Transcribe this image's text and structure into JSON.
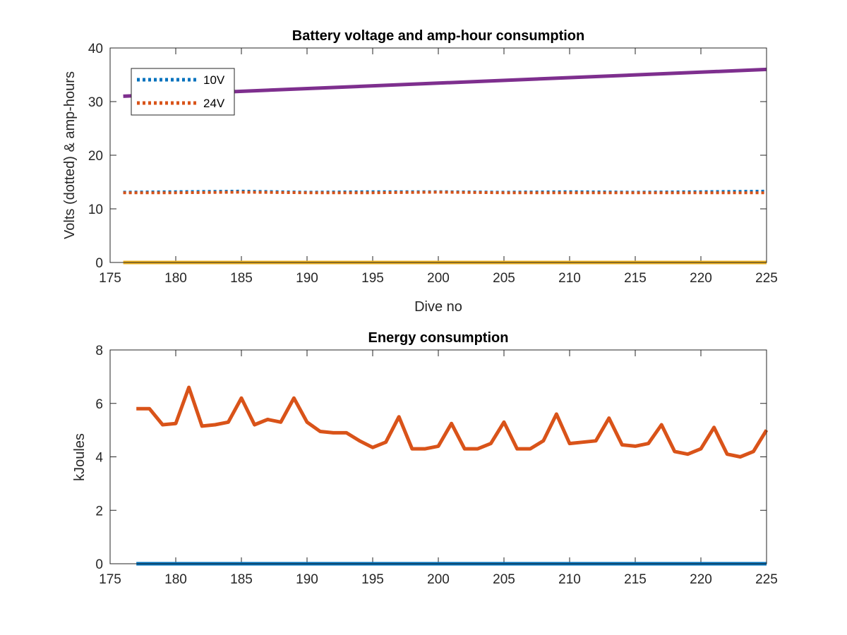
{
  "chart_data": [
    {
      "type": "line",
      "title": "Battery voltage and amp-hour consumption",
      "xlabel": "Dive no",
      "ylabel": "Volts (dotted) & amp-hours",
      "xlim": [
        175,
        225
      ],
      "ylim": [
        0,
        40
      ],
      "xticks": [
        175,
        180,
        185,
        190,
        195,
        200,
        205,
        210,
        215,
        220,
        225
      ],
      "yticks": [
        0,
        10,
        20,
        30,
        40
      ],
      "grid": false,
      "legend_position": "top-left",
      "series": [
        {
          "name": "10V",
          "style": "dotted",
          "color": "#0072BD",
          "x": [
            176,
            180,
            185,
            190,
            195,
            200,
            205,
            210,
            215,
            220,
            225
          ],
          "y": [
            13.1,
            13.2,
            13.3,
            13.1,
            13.2,
            13.2,
            13.1,
            13.2,
            13.1,
            13.2,
            13.3
          ]
        },
        {
          "name": "24V",
          "style": "dotted",
          "color": "#D95319",
          "x": [
            176,
            180,
            185,
            190,
            195,
            200,
            205,
            210,
            215,
            220,
            225
          ],
          "y": [
            13.0,
            13.0,
            13.1,
            13.0,
            13.0,
            13.1,
            13.0,
            13.0,
            13.0,
            13.0,
            13.0
          ]
        },
        {
          "style": "solid",
          "color": "#EDB120",
          "x": [
            176,
            225
          ],
          "y": [
            0,
            0
          ]
        },
        {
          "style": "solid",
          "color": "#7E2F8E",
          "x": [
            176,
            225
          ],
          "y": [
            31,
            36
          ]
        }
      ],
      "legend": [
        "10V",
        "24V"
      ]
    },
    {
      "type": "line",
      "title": "Energy consumption",
      "xlabel": "",
      "ylabel": "kJoules",
      "xlim": [
        175,
        225
      ],
      "ylim": [
        0,
        8
      ],
      "xticks": [
        175,
        180,
        185,
        190,
        195,
        200,
        205,
        210,
        215,
        220,
        225
      ],
      "yticks": [
        0,
        2,
        4,
        6,
        8
      ],
      "grid": false,
      "series": [
        {
          "style": "solid",
          "color": "#0072BD",
          "x": [
            177,
            225
          ],
          "y": [
            0,
            0
          ]
        },
        {
          "style": "solid",
          "color": "#D95319",
          "x": [
            177,
            178,
            179,
            180,
            181,
            182,
            183,
            184,
            185,
            186,
            187,
            188,
            189,
            190,
            191,
            192,
            193,
            194,
            195,
            196,
            197,
            198,
            199,
            200,
            201,
            202,
            203,
            204,
            205,
            206,
            207,
            208,
            209,
            210,
            211,
            212,
            213,
            214,
            215,
            216,
            217,
            218,
            219,
            220,
            221,
            222,
            223,
            224,
            225
          ],
          "y": [
            5.8,
            5.8,
            5.2,
            5.25,
            6.6,
            5.15,
            5.2,
            5.3,
            6.2,
            5.2,
            5.4,
            5.3,
            6.2,
            5.3,
            4.95,
            4.9,
            4.9,
            4.6,
            4.35,
            4.55,
            5.5,
            4.3,
            4.3,
            4.4,
            5.25,
            4.3,
            4.3,
            4.5,
            5.3,
            4.3,
            4.3,
            4.6,
            5.6,
            4.5,
            4.55,
            4.6,
            5.45,
            4.45,
            4.4,
            4.5,
            5.2,
            4.2,
            4.1,
            4.3,
            5.1,
            4.1,
            4.0,
            4.2,
            5.0
          ]
        }
      ]
    }
  ]
}
